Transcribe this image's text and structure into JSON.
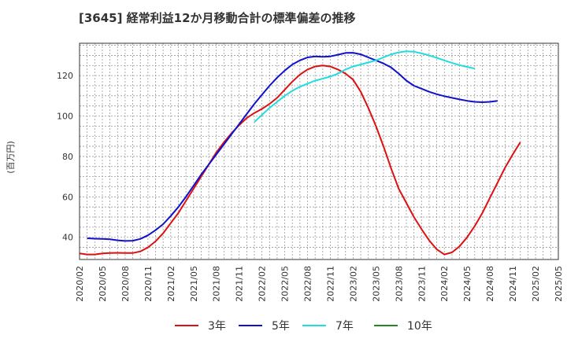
{
  "chart_data": {
    "type": "line",
    "title": "[3645]  経常利益12か月移動合計の標準偏差の推移",
    "ylabel": "(百万円)",
    "xlabel": "",
    "ylim": [
      29,
      136
    ],
    "yticks": [
      40,
      60,
      80,
      100,
      120
    ],
    "xlim": [
      "2020-02",
      "2025-05"
    ],
    "xtick_labels": [
      "2020/02",
      "2020/05",
      "2020/08",
      "2020/11",
      "2021/02",
      "2021/05",
      "2021/08",
      "2021/11",
      "2022/02",
      "2022/05",
      "2022/08",
      "2022/11",
      "2023/02",
      "2023/05",
      "2023/08",
      "2023/11",
      "2024/02",
      "2024/05",
      "2024/08",
      "2024/11",
      "2025/02",
      "2025/05"
    ],
    "grid": true,
    "legend_position": "bottom",
    "series": [
      {
        "name": "3年",
        "color": "#dd1111",
        "points": [
          [
            "2020-02",
            32
          ],
          [
            "2020-03",
            31.5
          ],
          [
            "2020-04",
            31.5
          ],
          [
            "2020-05",
            32
          ],
          [
            "2020-06",
            32.2
          ],
          [
            "2020-07",
            32.3
          ],
          [
            "2020-08",
            32.2
          ],
          [
            "2020-09",
            32.2
          ],
          [
            "2020-10",
            33
          ],
          [
            "2020-11",
            35
          ],
          [
            "2020-12",
            38
          ],
          [
            "2021-01",
            42
          ],
          [
            "2021-02",
            47
          ],
          [
            "2021-03",
            52
          ],
          [
            "2021-04",
            58
          ],
          [
            "2021-05",
            64
          ],
          [
            "2021-06",
            70
          ],
          [
            "2021-07",
            76
          ],
          [
            "2021-08",
            82
          ],
          [
            "2021-09",
            87
          ],
          [
            "2021-10",
            91.5
          ],
          [
            "2021-11",
            95.5
          ],
          [
            "2021-12",
            99
          ],
          [
            "2022-01",
            101.5
          ],
          [
            "2022-02",
            103.5
          ],
          [
            "2022-03",
            106
          ],
          [
            "2022-04",
            109
          ],
          [
            "2022-05",
            113
          ],
          [
            "2022-06",
            117
          ],
          [
            "2022-07",
            120.5
          ],
          [
            "2022-08",
            123
          ],
          [
            "2022-09",
            124.5
          ],
          [
            "2022-10",
            125
          ],
          [
            "2022-11",
            124.5
          ],
          [
            "2022-12",
            123
          ],
          [
            "2023-01",
            121
          ],
          [
            "2023-02",
            118
          ],
          [
            "2023-03",
            112
          ],
          [
            "2023-04",
            104
          ],
          [
            "2023-05",
            95
          ],
          [
            "2023-06",
            85
          ],
          [
            "2023-07",
            74
          ],
          [
            "2023-08",
            64
          ],
          [
            "2023-09",
            57
          ],
          [
            "2023-10",
            50
          ],
          [
            "2023-11",
            44
          ],
          [
            "2023-12",
            38.5
          ],
          [
            "2024-01",
            34
          ],
          [
            "2024-02",
            31.5
          ],
          [
            "2024-03",
            32.5
          ],
          [
            "2024-04",
            35.5
          ],
          [
            "2024-05",
            40
          ],
          [
            "2024-06",
            45.5
          ],
          [
            "2024-07",
            52
          ],
          [
            "2024-08",
            59.5
          ],
          [
            "2024-09",
            67
          ],
          [
            "2024-10",
            74.5
          ],
          [
            "2024-11",
            81
          ],
          [
            "2024-12",
            87
          ]
        ]
      },
      {
        "name": "5年",
        "color": "#1111cc",
        "points": [
          [
            "2020-03",
            39.5
          ],
          [
            "2020-04",
            39.3
          ],
          [
            "2020-05",
            39.2
          ],
          [
            "2020-06",
            39
          ],
          [
            "2020-07",
            38.5
          ],
          [
            "2020-08",
            38.2
          ],
          [
            "2020-09",
            38.3
          ],
          [
            "2020-10",
            39.2
          ],
          [
            "2020-11",
            41
          ],
          [
            "2020-12",
            43.5
          ],
          [
            "2021-01",
            46.5
          ],
          [
            "2021-02",
            50.5
          ],
          [
            "2021-03",
            55
          ],
          [
            "2021-04",
            60
          ],
          [
            "2021-05",
            65.5
          ],
          [
            "2021-06",
            71
          ],
          [
            "2021-07",
            76
          ],
          [
            "2021-08",
            81
          ],
          [
            "2021-09",
            86
          ],
          [
            "2021-10",
            91
          ],
          [
            "2021-11",
            96
          ],
          [
            "2021-12",
            101
          ],
          [
            "2022-01",
            106
          ],
          [
            "2022-02",
            110.5
          ],
          [
            "2022-03",
            115
          ],
          [
            "2022-04",
            119
          ],
          [
            "2022-05",
            122.5
          ],
          [
            "2022-06",
            125.5
          ],
          [
            "2022-07",
            127.5
          ],
          [
            "2022-08",
            129
          ],
          [
            "2022-09",
            129.5
          ],
          [
            "2022-10",
            129.3
          ],
          [
            "2022-11",
            129.5
          ],
          [
            "2022-12",
            130.3
          ],
          [
            "2023-01",
            131.2
          ],
          [
            "2023-02",
            131.3
          ],
          [
            "2023-03",
            130.5
          ],
          [
            "2023-04",
            129
          ],
          [
            "2023-05",
            127.5
          ],
          [
            "2023-06",
            126
          ],
          [
            "2023-07",
            124
          ],
          [
            "2023-08",
            121
          ],
          [
            "2023-09",
            117.5
          ],
          [
            "2023-10",
            115
          ],
          [
            "2023-11",
            113.5
          ],
          [
            "2023-12",
            112
          ],
          [
            "2024-01",
            110.8
          ],
          [
            "2024-02",
            109.8
          ],
          [
            "2024-03",
            109
          ],
          [
            "2024-04",
            108.2
          ],
          [
            "2024-05",
            107.5
          ],
          [
            "2024-06",
            107
          ],
          [
            "2024-07",
            106.8
          ],
          [
            "2024-08",
            107
          ],
          [
            "2024-09",
            107.5
          ]
        ]
      },
      {
        "name": "7年",
        "color": "#22dddd",
        "points": [
          [
            "2022-01",
            97
          ],
          [
            "2022-02",
            100.5
          ],
          [
            "2022-03",
            104
          ],
          [
            "2022-04",
            107
          ],
          [
            "2022-05",
            110
          ],
          [
            "2022-06",
            112.5
          ],
          [
            "2022-07",
            114.5
          ],
          [
            "2022-08",
            116
          ],
          [
            "2022-09",
            117.5
          ],
          [
            "2022-10",
            118.5
          ],
          [
            "2022-11",
            119.5
          ],
          [
            "2022-12",
            121
          ],
          [
            "2023-01",
            123
          ],
          [
            "2023-02",
            124.5
          ],
          [
            "2023-03",
            125.5
          ],
          [
            "2023-04",
            126.5
          ],
          [
            "2023-05",
            127.5
          ],
          [
            "2023-06",
            129
          ],
          [
            "2023-07",
            130.5
          ],
          [
            "2023-08",
            131.5
          ],
          [
            "2023-09",
            132
          ],
          [
            "2023-10",
            131.8
          ],
          [
            "2023-11",
            131
          ],
          [
            "2023-12",
            130
          ],
          [
            "2024-01",
            128.8
          ],
          [
            "2024-02",
            127.5
          ],
          [
            "2024-03",
            126.3
          ],
          [
            "2024-04",
            125.2
          ],
          [
            "2024-05",
            124.3
          ],
          [
            "2024-06",
            123.5
          ]
        ]
      },
      {
        "name": "10年",
        "color": "#228822",
        "points": []
      }
    ]
  }
}
